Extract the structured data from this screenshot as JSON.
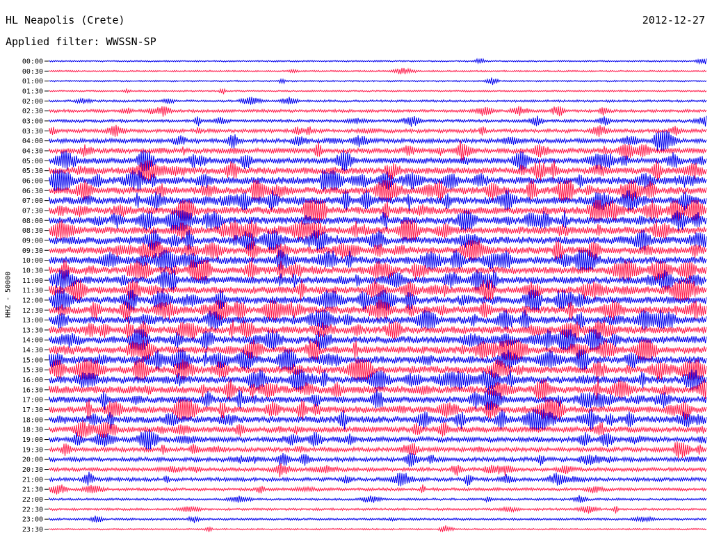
{
  "header": {
    "station": "HL Neapolis (Crete)",
    "date": "2012-12-27",
    "filter": "Applied filter: WWSSN-SP"
  },
  "colors": {
    "even_hour": "#0000ee",
    "half_hour": "#ff1a4a"
  },
  "chart_data": {
    "type": "line",
    "title": "HL Neapolis (Crete)",
    "ylabel": "HHZ - 50000",
    "xlabel": "",
    "tick_labels": [
      "00:00",
      "00:30",
      "01:00",
      "01:30",
      "02:00",
      "02:30",
      "03:00",
      "03:30",
      "04:00",
      "04:30",
      "05:00",
      "05:30",
      "06:00",
      "06:30",
      "07:00",
      "07:30",
      "08:00",
      "08:30",
      "09:00",
      "09:30",
      "10:00",
      "10:30",
      "11:00",
      "11:30",
      "12:00",
      "12:30",
      "13:00",
      "13:30",
      "14:00",
      "14:30",
      "15:00",
      "15:30",
      "16:00",
      "16:30",
      "17:00",
      "17:30",
      "18:00",
      "18:30",
      "19:00",
      "19:30",
      "20:00",
      "20:30",
      "21:00",
      "21:30",
      "22:00",
      "22:30",
      "23:00",
      "23:30"
    ],
    "series_colors": [
      "#0000ee",
      "#ff1a4a"
    ],
    "activity_level": [
      1,
      1,
      1,
      1,
      2,
      3,
      3,
      4,
      5,
      6,
      7,
      8,
      9,
      9,
      9,
      9,
      9,
      9,
      9,
      9,
      9,
      9,
      9,
      9,
      9,
      9,
      9,
      9,
      9,
      9,
      9,
      9,
      9,
      9,
      8,
      8,
      8,
      7,
      6,
      5,
      5,
      4,
      4,
      3,
      2,
      2,
      2,
      1
    ]
  }
}
